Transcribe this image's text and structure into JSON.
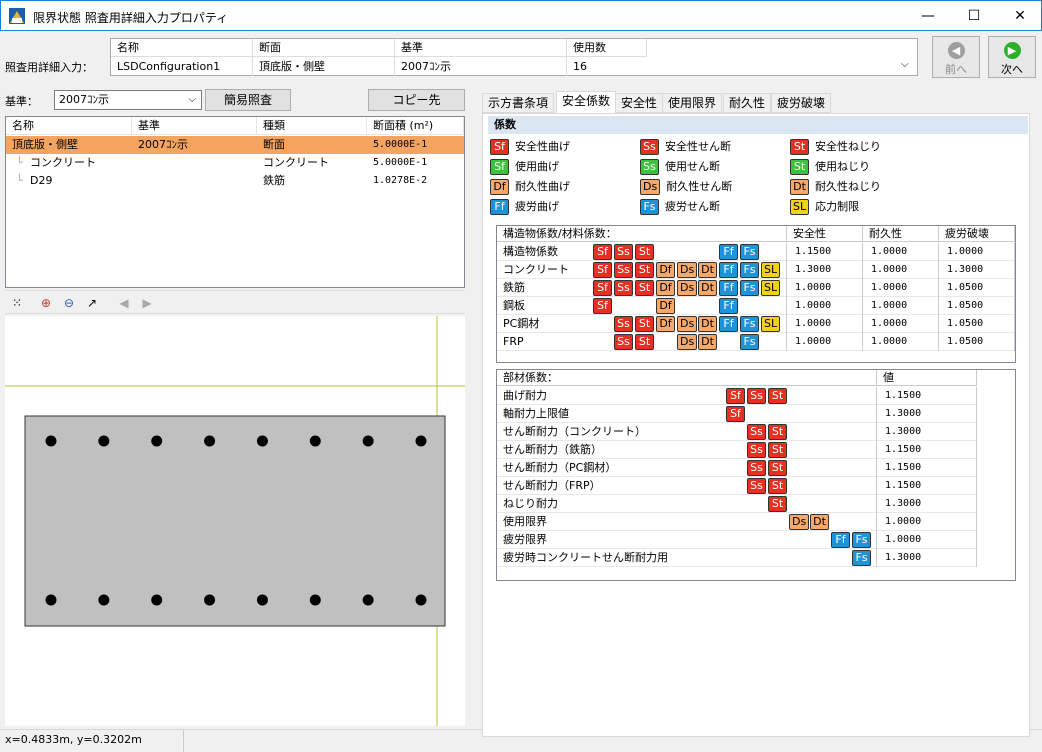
{
  "window": {
    "title": "限界状態 照査用詳細入力プロパティ",
    "minimize": "—",
    "maximize": "☐",
    "close": "✕"
  },
  "header": {
    "row_label": "照査用詳細入力：",
    "columns": [
      "名称",
      "断面",
      "基準",
      "使用数"
    ],
    "values": [
      "LSDConfiguration1",
      "頂底版・側壁",
      "2007ｺﾝ示",
      "16"
    ],
    "prev_label": "前へ",
    "next_label": "次へ"
  },
  "left": {
    "kijun_label": "基準：",
    "kijun_value": "2007ｺﾝ示",
    "simple_check_label": "簡易照査",
    "copy_label": "コピー先",
    "tree_columns": [
      "名称",
      "基準",
      "種類",
      "断面積 (m²)"
    ],
    "tree_rows": [
      {
        "name": "頂底版・側壁",
        "kijun": "2007ｺﾝ示",
        "kind": "断面",
        "area": "5.0000E-1",
        "selected": true
      },
      {
        "name": "コンクリート",
        "kijun": "",
        "kind": "コンクリート",
        "area": "5.0000E-1",
        "selected": false
      },
      {
        "name": "D29",
        "kijun": "",
        "kind": "鉄筋",
        "area": "1.0278E-2",
        "selected": false
      }
    ],
    "section": {
      "rebar_rows": 2,
      "rebars_per_row": 8
    }
  },
  "status": {
    "coords": "x=0.4833m, y=0.3202m"
  },
  "right": {
    "tabs": [
      "示方書条項",
      "安全係数",
      "安全性",
      "使用限界",
      "耐久性",
      "疲労破壊"
    ],
    "active_tab": 1,
    "section_title": "係数",
    "legend": [
      {
        "code": "Sf",
        "color": "red",
        "label": "安全性曲げ"
      },
      {
        "code": "Ss",
        "color": "red",
        "label": "安全性せん断"
      },
      {
        "code": "St",
        "color": "red",
        "label": "安全性ねじり"
      },
      {
        "code": "Sf",
        "color": "green",
        "label": "使用曲げ"
      },
      {
        "code": "Ss",
        "color": "green",
        "label": "使用せん断"
      },
      {
        "code": "St",
        "color": "green",
        "label": "使用ねじり"
      },
      {
        "code": "Df",
        "color": "orange",
        "label": "耐久性曲げ"
      },
      {
        "code": "Ds",
        "color": "orange",
        "label": "耐久性せん断"
      },
      {
        "code": "Dt",
        "color": "orange",
        "label": "耐久性ねじり"
      },
      {
        "code": "Ff",
        "color": "blue",
        "label": "疲労曲げ"
      },
      {
        "code": "Fs",
        "color": "blue",
        "label": "疲労せん断"
      },
      {
        "code": "SL",
        "color": "yellow",
        "label": "応力制限"
      }
    ],
    "material_table": {
      "columns": [
        "構造物係数/材料係数：",
        "安全性",
        "耐久性",
        "疲労破壊"
      ],
      "rows": [
        {
          "name": "構造物係数",
          "badges": [
            "Sf",
            "Ss",
            "St",
            "",
            "",
            "",
            "Ff",
            "Fs",
            ""
          ],
          "values": [
            "1.1500",
            "1.0000",
            "1.0000"
          ]
        },
        {
          "name": "コンクリート",
          "badges": [
            "Sf",
            "Ss",
            "St",
            "Df",
            "Ds",
            "Dt",
            "Ff",
            "Fs",
            "SL"
          ],
          "values": [
            "1.3000",
            "1.0000",
            "1.3000"
          ]
        },
        {
          "name": "鉄筋",
          "badges": [
            "Sf",
            "Ss",
            "St",
            "Df",
            "Ds",
            "Dt",
            "Ff",
            "Fs",
            "SL"
          ],
          "values": [
            "1.0000",
            "1.0000",
            "1.0500"
          ]
        },
        {
          "name": "鋼板",
          "badges": [
            "Sf",
            "",
            "",
            "Df",
            "",
            "",
            "Ff",
            "",
            ""
          ],
          "values": [
            "1.0000",
            "1.0000",
            "1.0500"
          ]
        },
        {
          "name": "PC鋼材",
          "badges": [
            "",
            "Ss",
            "St",
            "Df",
            "Ds",
            "Dt",
            "Ff",
            "Fs",
            "SL"
          ],
          "values": [
            "1.0000",
            "1.0000",
            "1.0500"
          ]
        },
        {
          "name": "FRP",
          "badges": [
            "",
            "Ss",
            "St",
            "",
            "Ds",
            "Dt",
            "",
            "Fs",
            ""
          ],
          "values": [
            "1.0000",
            "1.0000",
            "1.0500"
          ]
        }
      ]
    },
    "member_table": {
      "columns": [
        "部材係数：",
        "値"
      ],
      "rows": [
        {
          "name": "曲げ耐力",
          "badges": [
            "Sf",
            "Ss",
            "St"
          ],
          "start": 0,
          "value": "1.1500"
        },
        {
          "name": "軸耐力上限値",
          "badges": [
            "Sf"
          ],
          "start": 0,
          "value": "1.3000"
        },
        {
          "name": "せん断耐力（コンクリート）",
          "badges": [
            "Ss",
            "St"
          ],
          "start": 1,
          "value": "1.3000"
        },
        {
          "name": "せん断耐力（鉄筋）",
          "badges": [
            "Ss",
            "St"
          ],
          "start": 1,
          "value": "1.1500"
        },
        {
          "name": "せん断耐力（PC鋼材）",
          "badges": [
            "Ss",
            "St"
          ],
          "start": 1,
          "value": "1.1500"
        },
        {
          "name": "せん断耐力（FRP）",
          "badges": [
            "Ss",
            "St"
          ],
          "start": 1,
          "value": "1.1500"
        },
        {
          "name": "ねじり耐力",
          "badges": [
            "St"
          ],
          "start": 2,
          "value": "1.3000"
        },
        {
          "name": "使用限界",
          "badges": [
            "Ds",
            "Dt"
          ],
          "start": 3,
          "value": "1.0000"
        },
        {
          "name": "疲労限界",
          "badges": [
            "Ff",
            "Fs"
          ],
          "start": 5,
          "value": "1.0000"
        },
        {
          "name": "疲労時コンクリートせん断耐力用",
          "badges": [
            "Fs"
          ],
          "start": 6,
          "value": "1.3000"
        }
      ]
    }
  }
}
